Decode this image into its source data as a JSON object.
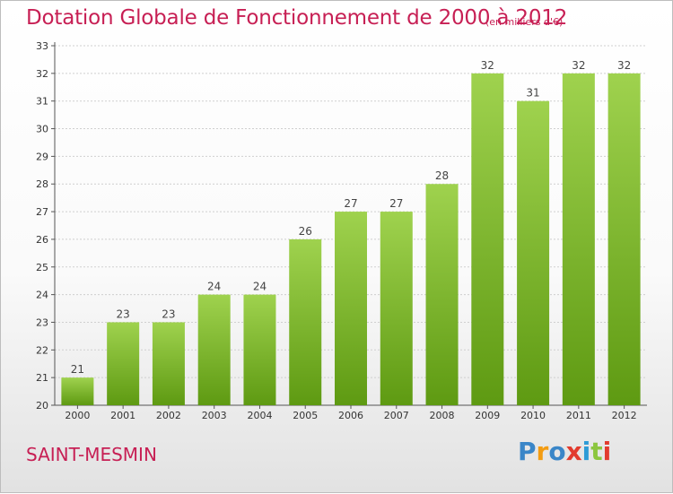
{
  "header": {
    "title": "Dotation Globale de Fonctionnement de 2000 à 2012",
    "subtitle": "(en milliers d'€)"
  },
  "footer": {
    "commune": "SAINT-MESMIN",
    "logo_text": "Proxiti"
  },
  "colors": {
    "accent": "#c71f54",
    "bar_top": "#9fd24e",
    "bar_bottom": "#5e9a12"
  },
  "chart_data": {
    "type": "bar",
    "categories": [
      "2000",
      "2001",
      "2002",
      "2003",
      "2004",
      "2005",
      "2006",
      "2007",
      "2008",
      "2009",
      "2010",
      "2011",
      "2012"
    ],
    "values": [
      21,
      23,
      23,
      24,
      24,
      26,
      27,
      27,
      28,
      32,
      31,
      32,
      32
    ],
    "title": "Dotation Globale de Fonctionnement de 2000 à 2012",
    "subtitle": "(en milliers d'€)",
    "xlabel": "",
    "ylabel": "",
    "ylim": [
      20,
      33
    ],
    "yticks": [
      20,
      21,
      22,
      23,
      24,
      25,
      26,
      27,
      28,
      29,
      30,
      31,
      32,
      33
    ],
    "grid": true,
    "data_labels": true
  }
}
